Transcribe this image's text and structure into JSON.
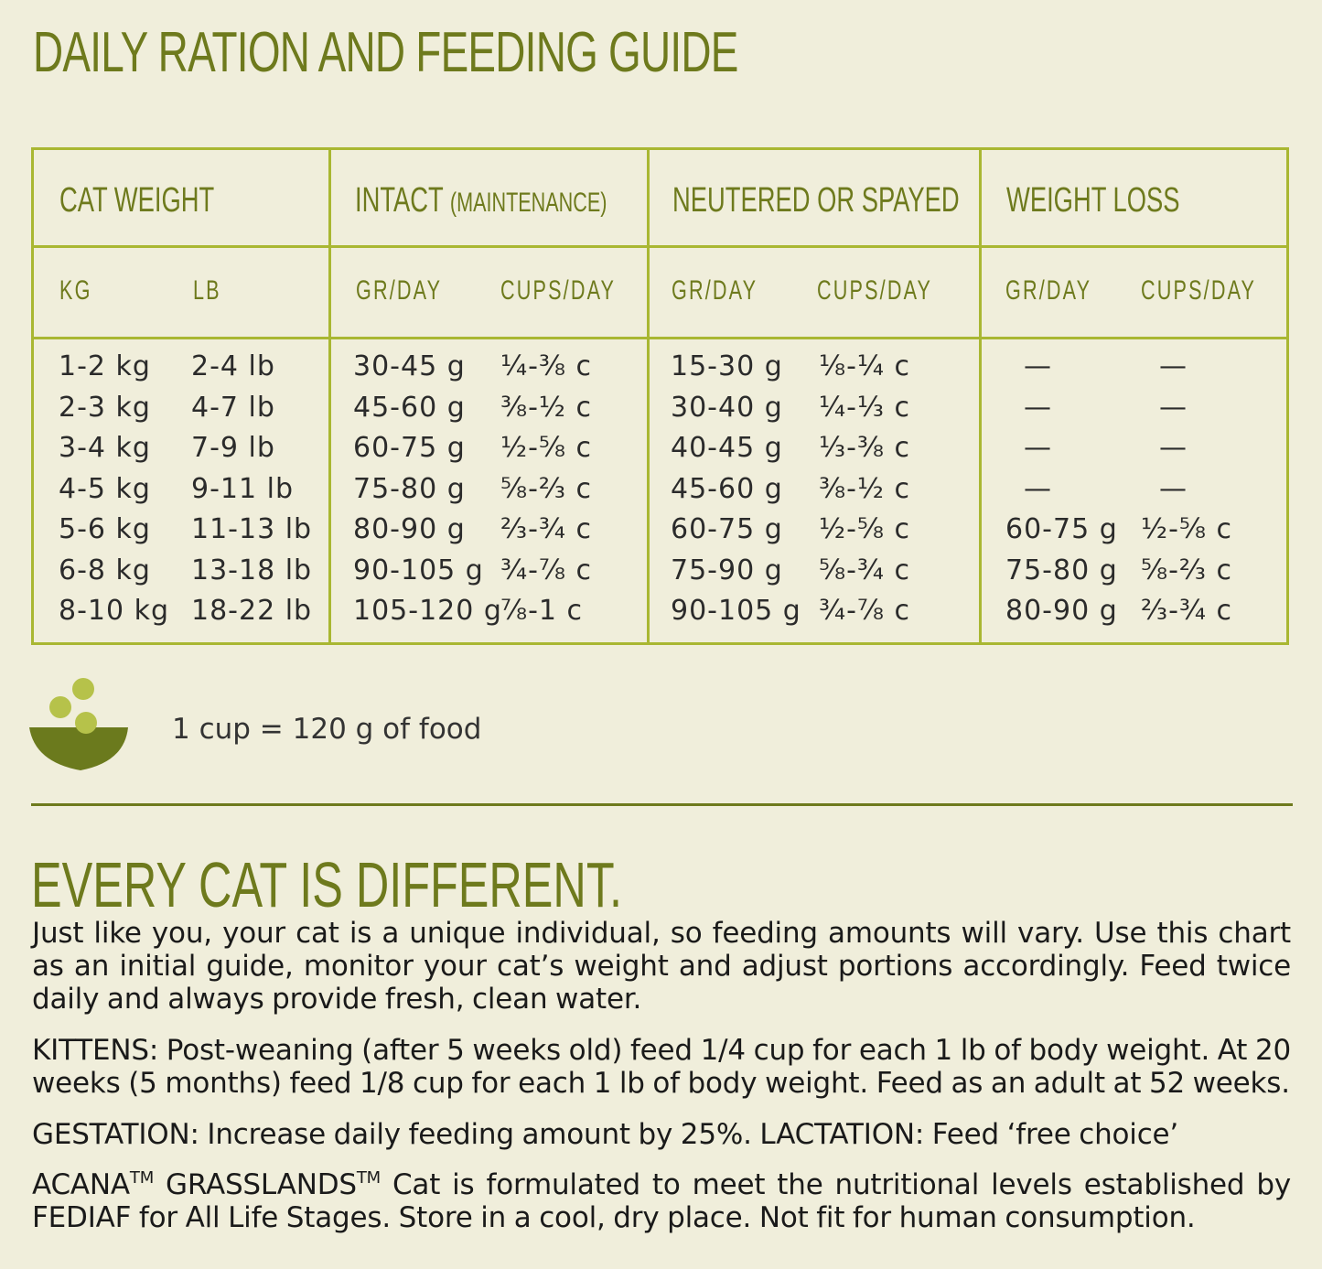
{
  "title": "DAILY RATION AND FEEDING GUIDE",
  "table": {
    "headers": {
      "cat_weight": "CAT WEIGHT",
      "intact": "INTACT",
      "intact_note": "(MAINTENANCE)",
      "neutered": "NEUTERED OR SPAYED",
      "weight_loss": "WEIGHT LOSS"
    },
    "subheaders": {
      "kg": "KG",
      "lb": "LB",
      "gr_day": "GR/DAY",
      "cups_day": "CUPS/DAY"
    },
    "kg": [
      "1-2 kg",
      "2-3 kg",
      "3-4 kg",
      "4-5 kg",
      "5-6 kg",
      "6-8 kg",
      "8-10 kg"
    ],
    "lb": [
      "2-4 lb",
      "4-7 lb",
      "7-9 lb",
      "9-11 lb",
      "11-13 lb",
      "13-18 lb",
      "18-22 lb"
    ],
    "intact_g": [
      "30-45 g",
      "45-60 g",
      "60-75 g",
      "75-80 g",
      "80-90 g",
      "90-105 g",
      "105-120 g"
    ],
    "intact_c": [
      "¼-⅜ c",
      "⅜-½ c",
      "½-⅝ c",
      "⅝-⅔ c",
      "⅔-¾ c",
      "¾-⅞ c",
      "⅞-1 c"
    ],
    "neutered_g": [
      "15-30 g",
      "30-40 g",
      "40-45 g",
      "45-60 g",
      "60-75 g",
      "75-90 g",
      "90-105 g"
    ],
    "neutered_c": [
      "⅛-¼ c",
      "¼-⅓ c",
      "⅓-⅜ c",
      "⅜-½ c",
      "½-⅝ c",
      "⅝-¾ c",
      "¾-⅞ c"
    ],
    "loss_g": [
      "—",
      "—",
      "—",
      "—",
      "60-75 g",
      "75-80 g",
      "80-90 g"
    ],
    "loss_c": [
      "—",
      "—",
      "—",
      "—",
      "½-⅝ c",
      "⅝-⅔ c",
      "⅔-¾ c"
    ]
  },
  "cup_note": "1 cup = 120 g of food",
  "section_title": "EVERY CAT IS DIFFERENT.",
  "paragraphs": {
    "intro": "Just like you, your cat is a unique individual, so feeding amounts will vary. Use this chart as an initial guide, monitor your cat’s weight and adjust portions accordingly. Feed twice daily and always provide fresh, clean water.",
    "kittens": "KITTENS: Post-weaning (after 5 weeks old) feed 1/4 cup for each 1 lb of body weight. At 20 weeks (5 months) feed 1/8 cup for each 1 lb of body weight. Feed as an adult at 52 weeks.",
    "gestation": "GESTATION: Increase daily feeding amount by 25%. LACTATION: Feed ‘free choice’",
    "brand": "ACANA",
    "tm1": "TM",
    "product": " GRASSLANDS",
    "tm2": "TM",
    "statement": " Cat is formulated to meet the nutritional levels established by FEDIAF for All Life Stages. Store in a cool, dry place. Not fit for human consumption."
  },
  "colors": {
    "background": "#f0eedb",
    "olive": "#6e7a1d",
    "table_border": "#a9b732",
    "bowl": "#6b7a1d",
    "pellet": "#b6c24a"
  }
}
